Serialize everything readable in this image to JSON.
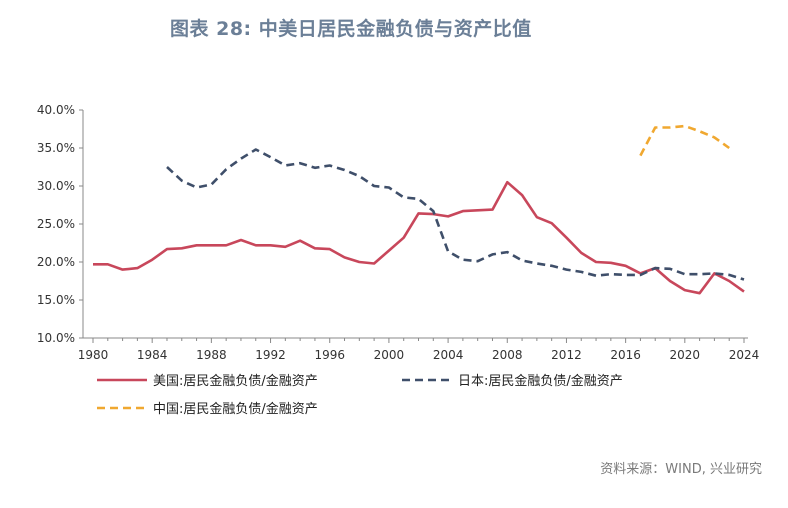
{
  "header": {
    "title": "图表 28: 中美日居民金融负债与资产比值"
  },
  "source": "资料来源：WIND, 兴业研究",
  "colors": {
    "us": "#c8475b",
    "jp": "#3f4f6a",
    "cn": "#f0a830"
  },
  "chart_data": {
    "type": "line",
    "title": "图表 28: 中美日居民金融负债与资产比值",
    "xlabel": "",
    "ylabel": "",
    "xlim": [
      1980,
      2024
    ],
    "ylim": [
      10,
      40
    ],
    "x_ticks": [
      1980,
      1984,
      1988,
      1992,
      1996,
      2000,
      2004,
      2008,
      2012,
      2016,
      2020,
      2024
    ],
    "x_tick_labels": [
      "1980",
      "1984",
      "1988",
      "1992",
      "1996",
      "2000",
      "2004",
      "2008",
      "2012",
      "2016",
      "2020",
      "2024"
    ],
    "y_ticks": [
      10,
      15,
      20,
      25,
      30,
      35,
      40
    ],
    "y_tick_labels": [
      "10.0%",
      "15.0%",
      "20.0%",
      "25.0%",
      "30.0%",
      "35.0%",
      "40.0%"
    ],
    "grid": false,
    "legend_position": "bottom",
    "series": [
      {
        "name": "美国:居民金融负债/金融资产",
        "style": "solid",
        "color": "#c8475b",
        "x": [
          1980,
          1981,
          1982,
          1983,
          1984,
          1985,
          1986,
          1987,
          1988,
          1989,
          1990,
          1991,
          1992,
          1993,
          1994,
          1995,
          1996,
          1997,
          1998,
          1999,
          2000,
          2001,
          2002,
          2003,
          2004,
          2005,
          2006,
          2007,
          2008,
          2009,
          2010,
          2011,
          2012,
          2013,
          2014,
          2015,
          2016,
          2017,
          2018,
          2019,
          2020,
          2021,
          2022,
          2023,
          2024
        ],
        "values": [
          19.7,
          19.7,
          19.0,
          19.2,
          20.3,
          21.7,
          21.8,
          22.2,
          22.2,
          22.2,
          22.9,
          22.2,
          22.2,
          22.0,
          22.8,
          21.8,
          21.7,
          20.6,
          20.0,
          19.8,
          21.5,
          23.2,
          26.4,
          26.3,
          26.0,
          26.7,
          26.8,
          26.9,
          30.5,
          28.8,
          25.9,
          25.1,
          23.2,
          21.2,
          20.0,
          19.9,
          19.5,
          18.5,
          19.2,
          17.5,
          16.3,
          15.9,
          18.5,
          17.5,
          16.1
        ]
      },
      {
        "name": "日本:居民金融负债/金融资产",
        "style": "dashed",
        "color": "#3f4f6a",
        "x": [
          1985,
          1986,
          1987,
          1988,
          1989,
          1990,
          1991,
          1992,
          1993,
          1994,
          1995,
          1996,
          1997,
          1998,
          1999,
          2000,
          2001,
          2002,
          2003,
          2004,
          2005,
          2006,
          2007,
          2008,
          2009,
          2010,
          2011,
          2012,
          2013,
          2014,
          2015,
          2016,
          2017,
          2018,
          2019,
          2020,
          2021,
          2022,
          2023,
          2024
        ],
        "values": [
          32.5,
          30.7,
          29.8,
          30.2,
          32.2,
          33.6,
          34.8,
          33.8,
          32.7,
          33.0,
          32.4,
          32.7,
          32.1,
          31.3,
          30.0,
          29.8,
          28.5,
          28.3,
          26.7,
          21.4,
          20.3,
          20.1,
          21.0,
          21.3,
          20.2,
          19.8,
          19.5,
          19.0,
          18.7,
          18.2,
          18.4,
          18.3,
          18.3,
          19.2,
          19.1,
          18.4,
          18.4,
          18.5,
          18.3,
          17.7
        ]
      },
      {
        "name": "中国:居民金融负债/金融资产",
        "style": "dashed",
        "color": "#f0a830",
        "x": [
          2017,
          2018,
          2019,
          2020,
          2021,
          2022,
          2023
        ],
        "values": [
          34.0,
          37.7,
          37.7,
          37.9,
          37.2,
          36.4,
          35.0
        ]
      }
    ]
  }
}
